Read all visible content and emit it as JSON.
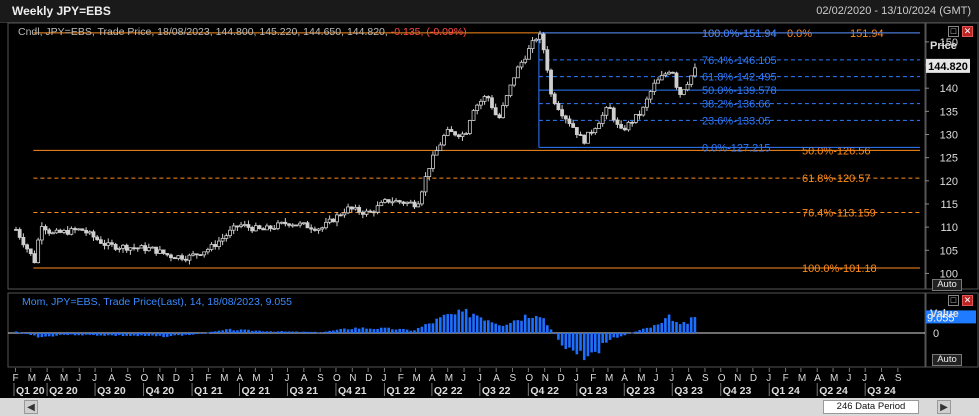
{
  "window": {
    "title": "Weekly JPY=EBS",
    "date_range": "02/02/2020 - 13/10/2024 (GMT)"
  },
  "top_panel": {
    "legend_prefix": "Cndl, JPY=EBS, Trade Price, 18/08/2023, 144.800, 145.220, 144.650, 144.820,",
    "legend_change": "-0.135, (-0.09%)",
    "axis_title": "Price",
    "last_price": "144.820",
    "auto_label": "Auto"
  },
  "bottom_panel": {
    "legend": "Mom, JPY=EBS, Trade Price(Last),  14,  18/08/2023, 9.055",
    "axis_title": "Value",
    "last_value": "9.055",
    "auto_label": "Auto"
  },
  "buttons": {
    "restore": "□",
    "close": "✕"
  },
  "scrollbar": {
    "count_label": "246 Data Period",
    "left_arrow": "◀",
    "right_arrow": "▶"
  },
  "colors": {
    "orange": "#ff8c1a",
    "blue": "#2e7bff",
    "candle": "#cfcfcf",
    "bar": "#1f6fff"
  },
  "chart_data": [
    {
      "type": "candlestick",
      "series_name": "JPY=EBS",
      "y_ticks": [
        100,
        105,
        110,
        115,
        120,
        125,
        130,
        135,
        140,
        145,
        150
      ],
      "ylim": [
        97.5,
        153
      ],
      "x_range": [
        "2020-02-02",
        "2024-10-13"
      ],
      "close_anchors": [
        [
          "2020-02-02",
          109.5
        ],
        [
          "2020-03-09",
          102.5
        ],
        [
          "2020-03-20",
          111.0
        ],
        [
          "2020-04-10",
          108.5
        ],
        [
          "2020-06-05",
          109.5
        ],
        [
          "2020-07-24",
          106.0
        ],
        [
          "2020-10-16",
          105.3
        ],
        [
          "2020-11-20",
          103.8
        ],
        [
          "2020-12-25",
          103.5
        ],
        [
          "2021-02-05",
          105.5
        ],
        [
          "2021-03-31",
          110.5
        ],
        [
          "2021-05-14",
          109.3
        ],
        [
          "2021-07-02",
          111.0
        ],
        [
          "2021-09-03",
          109.7
        ],
        [
          "2021-10-22",
          114.0
        ],
        [
          "2021-12-03",
          113.0
        ],
        [
          "2022-01-07",
          115.8
        ],
        [
          "2022-03-04",
          115.0
        ],
        [
          "2022-03-28",
          123.5
        ],
        [
          "2022-04-28",
          130.5
        ],
        [
          "2022-06-03",
          130.0
        ],
        [
          "2022-06-17",
          135.5
        ],
        [
          "2022-07-15",
          138.5
        ],
        [
          "2022-08-05",
          133.0
        ],
        [
          "2022-09-07",
          143.5
        ],
        [
          "2022-10-21",
          151.9
        ],
        [
          "2022-11-04",
          146.5
        ],
        [
          "2022-11-11",
          139.0
        ],
        [
          "2022-12-02",
          135.0
        ],
        [
          "2022-12-23",
          132.0
        ],
        [
          "2023-01-13",
          128.5
        ],
        [
          "2023-02-03",
          131.5
        ],
        [
          "2023-03-03",
          136.0
        ],
        [
          "2023-03-24",
          130.5
        ],
        [
          "2023-05-05",
          135.0
        ],
        [
          "2023-05-26",
          140.5
        ],
        [
          "2023-06-30",
          144.5
        ],
        [
          "2023-07-14",
          138.5
        ],
        [
          "2023-08-18",
          144.82
        ]
      ],
      "levels": [
        {
          "label": "100.0%-151.94",
          "price": 151.94,
          "color": "orange",
          "x_start": "2020-03-06",
          "style": "solid"
        },
        {
          "label": "0.0%",
          "price": 151.94,
          "color": "orange",
          "x_start": "2020-03-06",
          "style": "solid"
        },
        {
          "label": "151.94",
          "price": 151.94,
          "color": "orange",
          "x_start": "2020-03-06",
          "style": "solid"
        },
        {
          "label": "50.0%-126.56",
          "price": 126.56,
          "color": "orange",
          "x_start": "2020-03-06",
          "style": "solid"
        },
        {
          "label": "61.8%-120.57",
          "price": 120.57,
          "color": "orange",
          "x_start": "2020-03-06",
          "style": "dashed"
        },
        {
          "label": "76.4%-113.159",
          "price": 113.159,
          "color": "orange",
          "x_start": "2020-03-06",
          "style": "dashed"
        },
        {
          "label": "100.0%-101.18",
          "price": 101.18,
          "color": "orange",
          "x_start": "2020-03-06",
          "style": "solid"
        },
        {
          "label": "100.0%-151.94",
          "price": 151.94,
          "color": "blue",
          "x_start": "2022-10-21",
          "style": "solid"
        },
        {
          "label": "76.4%-146.105",
          "price": 146.105,
          "color": "blue",
          "x_start": "2022-10-21",
          "style": "dashed"
        },
        {
          "label": "61.8%-142.495",
          "price": 142.495,
          "color": "blue",
          "x_start": "2022-10-21",
          "style": "dashed"
        },
        {
          "label": "50.0%-139.578",
          "price": 139.578,
          "color": "blue",
          "x_start": "2022-10-21",
          "style": "solid"
        },
        {
          "label": "38.2%-136.66",
          "price": 136.66,
          "color": "blue",
          "x_start": "2022-10-21",
          "style": "dashed"
        },
        {
          "label": "23.6%-133.05",
          "price": 133.05,
          "color": "blue",
          "x_start": "2022-10-21",
          "style": "dashed"
        },
        {
          "label": "0.0%-127.215",
          "price": 127.215,
          "color": "blue",
          "x_start": "2022-10-21",
          "style": "solid"
        }
      ],
      "last_price": 144.82
    },
    {
      "type": "bar",
      "series_name": "Mom",
      "period": 14,
      "y_ticks": [
        0
      ],
      "ylim": [
        -18,
        18
      ],
      "last_value": 9.055,
      "value_anchors": [
        [
          "2020-02-02",
          1.0
        ],
        [
          "2020-03-20",
          -2.5
        ],
        [
          "2020-05-01",
          -1.0
        ],
        [
          "2020-08-07",
          -1.5
        ],
        [
          "2020-11-06",
          -2.0
        ],
        [
          "2021-01-01",
          -1.0
        ],
        [
          "2021-03-12",
          2.0
        ],
        [
          "2021-06-04",
          1.0
        ],
        [
          "2021-09-03",
          0.5
        ],
        [
          "2021-11-05",
          3.0
        ],
        [
          "2022-01-14",
          2.5
        ],
        [
          "2022-02-25",
          1.5
        ],
        [
          "2022-04-29",
          10.0
        ],
        [
          "2022-06-17",
          12.0
        ],
        [
          "2022-08-12",
          5.0
        ],
        [
          "2022-10-21",
          13.0
        ],
        [
          "2022-11-04",
          6.0
        ],
        [
          "2022-12-02",
          -6.0
        ],
        [
          "2023-01-06",
          -13.0
        ],
        [
          "2023-01-27",
          -14.0
        ],
        [
          "2023-03-03",
          -4.0
        ],
        [
          "2023-03-24",
          -2.0
        ],
        [
          "2023-05-05",
          2.0
        ],
        [
          "2023-06-09",
          5.0
        ],
        [
          "2023-06-30",
          10.0
        ],
        [
          "2023-07-14",
          4.0
        ],
        [
          "2023-08-18",
          9.055
        ]
      ]
    }
  ],
  "x_axis": {
    "month_labels": [
      "F",
      "M",
      "A",
      "M",
      "J",
      "J",
      "A",
      "S",
      "O",
      "N",
      "D",
      "J",
      "F",
      "M",
      "A",
      "M",
      "J",
      "J",
      "A",
      "S",
      "O",
      "N",
      "D",
      "J",
      "F",
      "M",
      "A",
      "M",
      "J",
      "J",
      "A",
      "S",
      "O",
      "N",
      "D",
      "J",
      "F",
      "M",
      "A",
      "M",
      "J",
      "J",
      "A",
      "S",
      "O",
      "N",
      "D",
      "J",
      "F",
      "M",
      "A",
      "M",
      "J",
      "J",
      "A",
      "S"
    ],
    "quarter_labels": [
      "Q1 20",
      "Q2 20",
      "Q3 20",
      "Q4 20",
      "Q1 21",
      "Q2 21",
      "Q3 21",
      "Q4 21",
      "Q1 22",
      "Q2 22",
      "Q3 22",
      "Q4 22",
      "Q1 23",
      "Q2 23",
      "Q3 23",
      "Q4 23",
      "Q1 24",
      "Q2 24",
      "Q3 24"
    ]
  }
}
